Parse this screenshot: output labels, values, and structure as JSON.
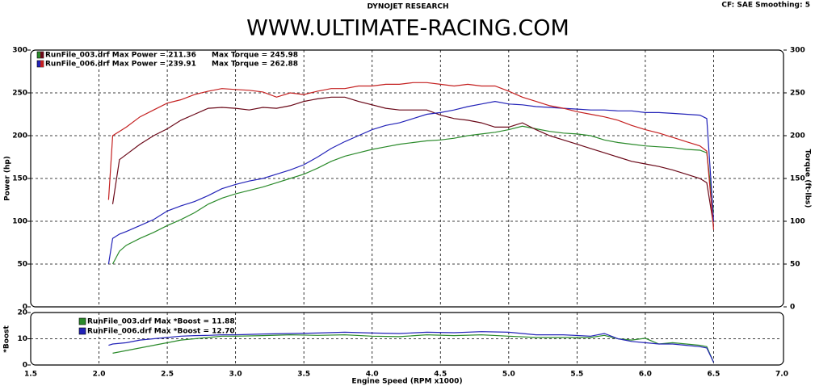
{
  "chart_data": [
    {
      "type": "line",
      "subtitle": "DYNOJET RESEARCH",
      "title": "WWW.ULTIMATE-RACING.COM",
      "annotations": [
        "CF: SAE  Smoothing: 5"
      ],
      "y_label": "Power (hp)",
      "y2_label": "Torque (ft-lbs)",
      "grid": true,
      "x": [
        2.07,
        2.1,
        2.15,
        2.2,
        2.3,
        2.4,
        2.5,
        2.6,
        2.7,
        2.8,
        2.9,
        3.0,
        3.1,
        3.2,
        3.3,
        3.4,
        3.5,
        3.6,
        3.7,
        3.8,
        3.9,
        4.0,
        4.1,
        4.2,
        4.3,
        4.4,
        4.5,
        4.6,
        4.7,
        4.8,
        4.9,
        5.0,
        5.1,
        5.2,
        5.3,
        5.4,
        5.5,
        5.6,
        5.7,
        5.8,
        5.9,
        6.0,
        6.1,
        6.2,
        6.3,
        6.4,
        6.45,
        6.5
      ],
      "xlim": [
        1.5,
        7
      ],
      "xticks": [
        1.5,
        2,
        2.5,
        3,
        3.5,
        4,
        4.5,
        5,
        5.5,
        6,
        6.5,
        7
      ],
      "ylim": [
        0,
        300
      ],
      "yticks": [
        0,
        50,
        100,
        150,
        200,
        250,
        300
      ],
      "y2lim": [
        0,
        300
      ],
      "y2ticks": [
        0,
        50,
        100,
        150,
        200,
        250,
        300
      ],
      "series": [
        {
          "name": "RunFile_003.drf Max Power = 211.36",
          "color": "#2a8a2a",
          "values": [
            null,
            50,
            65,
            72,
            80,
            87,
            95,
            102,
            110,
            120,
            127,
            132,
            136,
            140,
            145,
            150,
            155,
            162,
            170,
            176,
            180,
            184,
            187,
            190,
            192,
            194,
            195,
            197,
            200,
            202,
            204,
            207,
            211,
            208,
            205,
            203,
            202,
            200,
            195,
            192,
            190,
            188,
            187,
            186,
            184,
            183,
            180,
            110
          ]
        },
        {
          "name": "Max Torque = 245.98",
          "color": "#6a0818",
          "axis": "y2",
          "values": [
            null,
            120,
            172,
            178,
            190,
            200,
            208,
            218,
            225,
            232,
            233,
            232,
            230,
            233,
            232,
            235,
            240,
            243,
            245,
            245,
            240,
            236,
            232,
            230,
            230,
            230,
            224,
            220,
            218,
            215,
            210,
            210,
            215,
            207,
            200,
            195,
            190,
            185,
            180,
            175,
            170,
            167,
            164,
            160,
            155,
            150,
            145,
            95
          ]
        },
        {
          "name": "RunFile_006.drf Max Power = 239.91",
          "color": "#2323b8",
          "values": [
            50,
            80,
            85,
            88,
            95,
            102,
            112,
            118,
            123,
            130,
            138,
            143,
            147,
            150,
            155,
            160,
            166,
            175,
            185,
            193,
            200,
            207,
            212,
            215,
            220,
            225,
            227,
            230,
            234,
            237,
            240,
            237,
            236,
            234,
            233,
            232,
            231,
            230,
            230,
            229,
            229,
            227,
            227,
            226,
            225,
            224,
            220,
            100
          ]
        },
        {
          "name": "Max Torque = 262.88",
          "color": "#c42020",
          "axis": "y2",
          "values": [
            125,
            200,
            205,
            210,
            222,
            230,
            238,
            242,
            248,
            252,
            255,
            254,
            253,
            251,
            245,
            250,
            248,
            252,
            255,
            255,
            258,
            258,
            260,
            260,
            262,
            262,
            260,
            258,
            260,
            258,
            258,
            252,
            245,
            240,
            235,
            232,
            228,
            225,
            222,
            218,
            212,
            207,
            203,
            198,
            193,
            188,
            182,
            90
          ]
        }
      ]
    },
    {
      "type": "line",
      "y_label": "*Boost",
      "x_label": "Engine Speed (RPM x1000)",
      "grid": true,
      "x": [
        2.07,
        2.1,
        2.2,
        2.3,
        2.4,
        2.5,
        2.6,
        2.7,
        2.8,
        2.9,
        3.0,
        3.2,
        3.4,
        3.6,
        3.8,
        4.0,
        4.2,
        4.4,
        4.6,
        4.8,
        5.0,
        5.2,
        5.4,
        5.6,
        5.7,
        5.8,
        5.9,
        6.0,
        6.1,
        6.2,
        6.3,
        6.4,
        6.45,
        6.5
      ],
      "xlim": [
        1.5,
        7
      ],
      "xticks": [
        {
          "value": 1.5,
          "label": "1.5"
        },
        {
          "value": 2,
          "label": "2.0"
        },
        {
          "value": 2.5,
          "label": "2.5"
        },
        {
          "value": 3,
          "label": "3.0"
        },
        {
          "value": 3.5,
          "label": "3.5"
        },
        {
          "value": 4,
          "label": "4.0"
        },
        {
          "value": 4.5,
          "label": "4.5"
        },
        {
          "value": 5,
          "label": "5.0"
        },
        {
          "value": 5.5,
          "label": "5.5"
        },
        {
          "value": 6,
          "label": "6.0"
        },
        {
          "value": 6.5,
          "label": "6.5"
        },
        {
          "value": 7,
          "label": "7.0"
        }
      ],
      "ylim": [
        0,
        20
      ],
      "yticks": [
        0,
        10,
        20
      ],
      "series": [
        {
          "name": "RunFile_003.drf Max *Boost = 11.88",
          "color": "#2a8a2a",
          "values": [
            null,
            4.5,
            5.5,
            6.5,
            7.5,
            8.5,
            9.5,
            10,
            10.5,
            11,
            11,
            11.2,
            11.5,
            11.3,
            11.5,
            11,
            10.8,
            11.5,
            11.2,
            11.5,
            11,
            10.5,
            10.5,
            10.5,
            11.3,
            10,
            9.5,
            10.2,
            8,
            8.5,
            8,
            7.5,
            7,
            1
          ]
        },
        {
          "name": "RunFile_006.drf Max *Boost = 12.70",
          "color": "#2323b8",
          "values": [
            7.5,
            8,
            8.5,
            9.5,
            10,
            10.5,
            11,
            11.2,
            11.3,
            11.5,
            11.5,
            11.8,
            12,
            12.2,
            12.5,
            12.2,
            12,
            12.5,
            12.3,
            12.7,
            12.5,
            11.5,
            11.5,
            11,
            12,
            10,
            9,
            8.5,
            8,
            8,
            7.5,
            7,
            6.5,
            1
          ]
        }
      ]
    }
  ]
}
